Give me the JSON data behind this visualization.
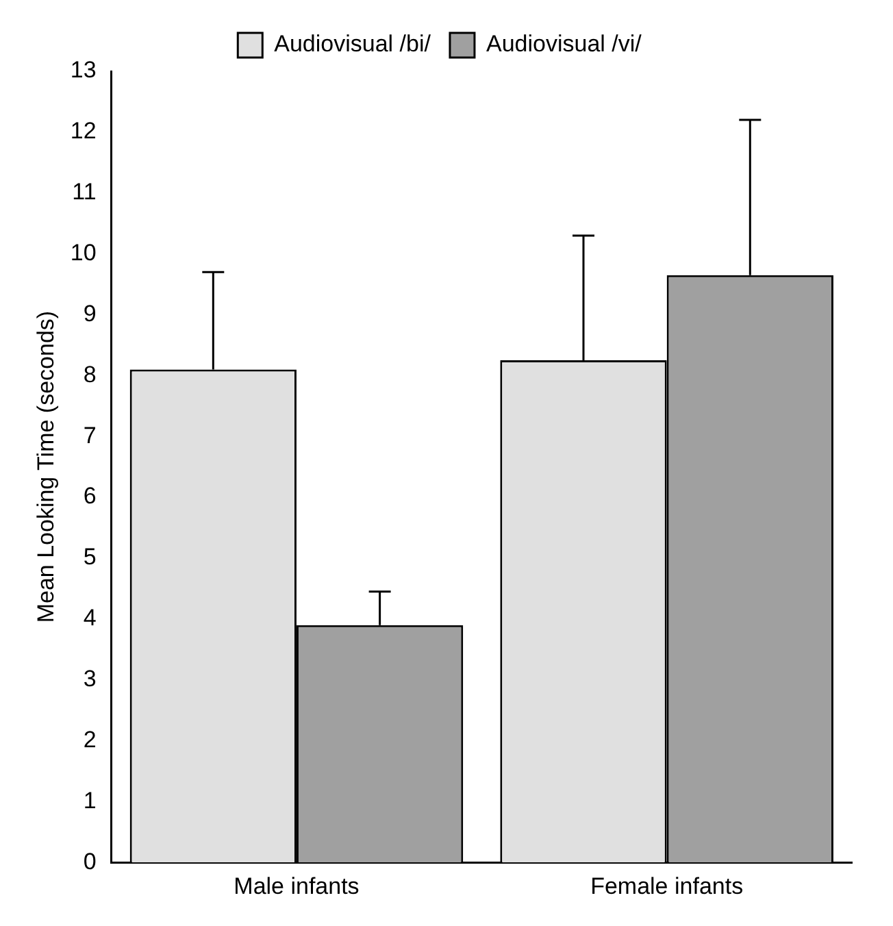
{
  "chart_data": {
    "type": "bar",
    "ylabel": "Mean Looking Time (seconds)",
    "categories": [
      "Male infants",
      "Female infants"
    ],
    "series": [
      {
        "name": "Audiovisual /bi/",
        "color": "#e0e0e0",
        "values": [
          8.1,
          8.25
        ],
        "errors": [
          [
            8.1,
            9.7
          ],
          [
            8.25,
            10.3
          ]
        ]
      },
      {
        "name": "Audiovisual /vi/",
        "color": "#a0a0a0",
        "values": [
          3.9,
          9.65
        ],
        "errors": [
          [
            3.9,
            4.45
          ],
          [
            9.65,
            12.2
          ]
        ]
      }
    ],
    "ylim": [
      0,
      13
    ],
    "yticks": [
      0,
      1,
      2,
      3,
      4,
      5,
      6,
      7,
      8,
      9,
      10,
      11,
      12,
      13
    ],
    "grid": false,
    "legend": "top"
  }
}
